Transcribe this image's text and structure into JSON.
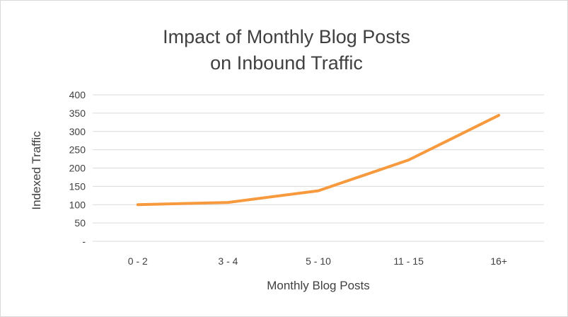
{
  "chart_data": {
    "type": "line",
    "title_lines": [
      "Impact of Monthly Blog Posts",
      "on Inbound Traffic"
    ],
    "xlabel": "Monthly Blog Posts",
    "ylabel": "Indexed Traffic",
    "categories": [
      "0 - 2",
      "3 - 4",
      "5 - 10",
      "11 - 15",
      "16+"
    ],
    "y_ticks": [
      "-",
      "50",
      "100",
      "150",
      "200",
      "250",
      "300",
      "350",
      "400"
    ],
    "ylim": [
      0,
      400
    ],
    "grid": true,
    "legend": "none",
    "series": [
      {
        "values": [
          100,
          106,
          138,
          222,
          344
        ],
        "color": "#f79a3e"
      }
    ]
  }
}
